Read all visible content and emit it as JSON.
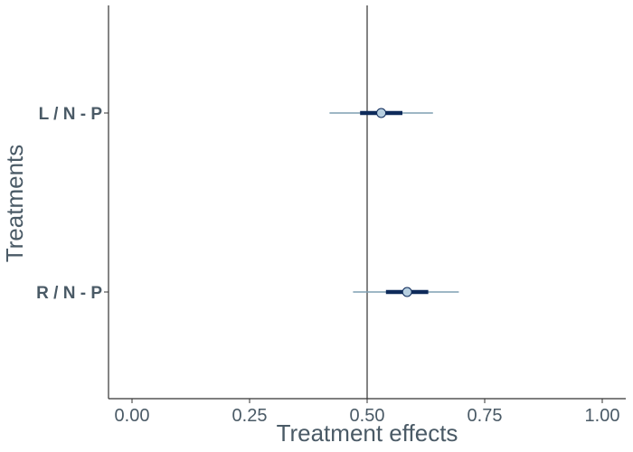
{
  "chart_data": {
    "type": "scatter",
    "subtype": "forest-plot-interval",
    "xlabel": "Treatment effects",
    "ylabel": "Treatments",
    "xlim": [
      -0.05,
      1.05
    ],
    "x_ticks": [
      0.0,
      0.25,
      0.5,
      0.75,
      1.0
    ],
    "x_tick_labels": [
      "0.00",
      "0.25",
      "0.50",
      "0.75",
      "1.00"
    ],
    "reference_line_x": 0.5,
    "grid": false,
    "categories": [
      "L / N - P",
      "R / N - P"
    ],
    "points": [
      {
        "label": "L / N - P",
        "estimate": 0.53,
        "inner": [
          0.485,
          0.575
        ],
        "outer": [
          0.42,
          0.64
        ]
      },
      {
        "label": "R / N - P",
        "estimate": 0.585,
        "inner": [
          0.54,
          0.63
        ],
        "outer": [
          0.47,
          0.695
        ]
      }
    ],
    "colors": {
      "axis": "#333333",
      "outer_interval": "#7f9fb2",
      "inner_interval": "#0e2a5a",
      "point_fill": "#b7cfe0",
      "point_stroke": "#0e2a5a",
      "text": "#4a5a66"
    }
  }
}
